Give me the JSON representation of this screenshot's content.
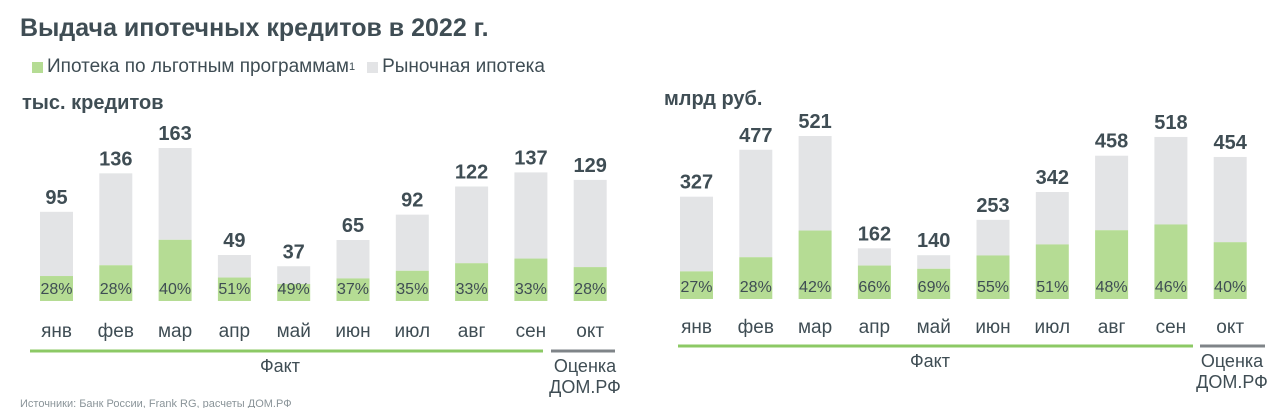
{
  "title": "Выдача ипотечных кредитов в 2022 г.",
  "legend": {
    "preferential": {
      "label": "Ипотека по льготным программам",
      "sup": "1",
      "color": "#b5dc94"
    },
    "market": {
      "label": "Рыночная ипотека",
      "color": "#e3e4e6"
    }
  },
  "colors": {
    "text": "#3f4d54",
    "fact_line": "#8cc965",
    "estimate_line": "#7f8488"
  },
  "footnote": "Источники: Банк России, Frank RG, расчеты ДОМ.РФ",
  "chart_data": [
    {
      "type": "bar",
      "unit_label": "тыс. кредитов",
      "categories": [
        "янв",
        "фев",
        "мар",
        "апр",
        "май",
        "июн",
        "июл",
        "авг",
        "сен",
        "окт"
      ],
      "totals": [
        95,
        136,
        163,
        49,
        37,
        65,
        92,
        122,
        137,
        129
      ],
      "preferential_share_pct": [
        28,
        28,
        40,
        51,
        49,
        37,
        35,
        33,
        33,
        28
      ],
      "total_labels": [
        "95",
        "136",
        "163",
        "49",
        "37",
        "65",
        "92",
        "122",
        "137",
        "129"
      ],
      "share_labels": [
        "28%",
        "28%",
        "40%",
        "51%",
        "49%",
        "37%",
        "35%",
        "33%",
        "33%",
        "28%"
      ],
      "fact_label": "Факт",
      "estimate_label": [
        "Оценка",
        "ДОМ.РФ"
      ],
      "fact_count": 9
    },
    {
      "type": "bar",
      "unit_label": "млрд руб.",
      "categories": [
        "янв",
        "фев",
        "мар",
        "апр",
        "май",
        "июн",
        "июл",
        "авг",
        "сен",
        "окт"
      ],
      "totals": [
        327,
        477,
        521,
        162,
        140,
        253,
        342,
        458,
        518,
        454
      ],
      "preferential_share_pct": [
        27,
        28,
        42,
        66,
        69,
        55,
        51,
        48,
        46,
        40
      ],
      "total_labels": [
        "327",
        "477",
        "521",
        "162",
        "140",
        "253",
        "342",
        "458",
        "518",
        "454"
      ],
      "share_labels": [
        "27%",
        "28%",
        "42%",
        "66%",
        "69%",
        "55%",
        "51%",
        "48%",
        "46%",
        "40%"
      ],
      "fact_label": "Факт",
      "estimate_label": [
        "Оценка",
        "ДОМ.РФ"
      ],
      "fact_count": 9
    }
  ]
}
